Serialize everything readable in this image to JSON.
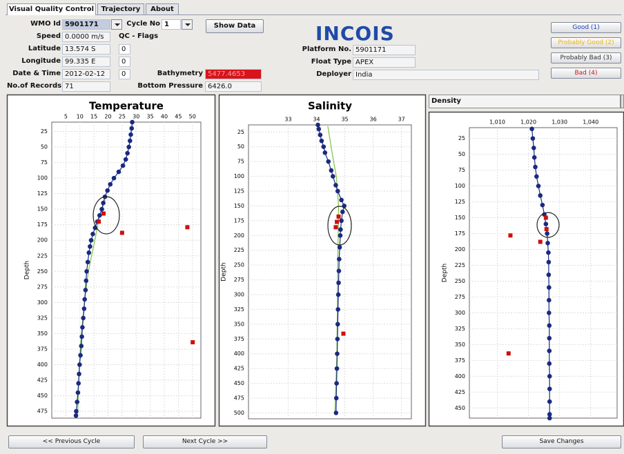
{
  "tabs": [
    "Visual Quality Control",
    "Trajectory",
    "About"
  ],
  "form": {
    "wmo_id": {
      "label": "WMO Id",
      "value": "5901171"
    },
    "cycle_no": {
      "label": "Cycle No",
      "value": "1"
    },
    "show_data": "Show Data",
    "speed": {
      "label": "Speed",
      "value": "0.0000 m/s"
    },
    "qc_flags": "QC - Flags",
    "latitude": {
      "label": "Latitude",
      "value": "13.574 S",
      "flag": "0"
    },
    "longitude": {
      "label": "Longitude",
      "value": "99.335 E",
      "flag": "0"
    },
    "date_time": {
      "label": "Date & Time",
      "value": "2012-02-12",
      "flag": "0"
    },
    "bathymetry": {
      "label": "Bathymetry",
      "value": "5477.4653"
    },
    "no_of_records": {
      "label": "No.of Records",
      "value": "71"
    },
    "bottom_pressure": {
      "label": "Bottom Pressure",
      "value": "6426.0"
    }
  },
  "platform": {
    "logo": "INCOIS",
    "platform_no": {
      "label": "Platform No.",
      "value": "5901171"
    },
    "float_type": {
      "label": "Float Type",
      "value": "APEX"
    },
    "deployer": {
      "label": "Deployer",
      "value": "India"
    }
  },
  "flag_buttons": [
    "Good (1)",
    "Probably Good (2)",
    "Probably Bad (3)",
    "Bad (4)"
  ],
  "nav": {
    "previous": "<< Previous Cycle",
    "next": "Next Cycle >>",
    "save": "Save Changes"
  },
  "chart_data": [
    {
      "type": "scatter",
      "title": "Temperature",
      "title_location": "plot",
      "y_label": "Depth",
      "xlim": [
        0,
        53
      ],
      "ylim": [
        10,
        486
      ],
      "y_inverted": true,
      "x_axis_position": "top",
      "grid": true,
      "xticks": [
        5,
        10,
        15,
        20,
        25,
        30,
        35,
        40,
        45,
        50
      ],
      "yticks": [
        25,
        50,
        75,
        100,
        125,
        150,
        175,
        200,
        225,
        250,
        275,
        300,
        325,
        350,
        375,
        400,
        425,
        450,
        475
      ],
      "series": [
        {
          "color": "#7cc142",
          "mode": "line",
          "x": [
            19.0,
            17.0,
            15.3,
            13.0,
            11.6,
            10.5,
            9.8,
            9.2
          ],
          "values": [
            135,
            160,
            200,
            250,
            300,
            350,
            400,
            480
          ]
        },
        {
          "color": "#1a2a80",
          "mode": "line+markers",
          "marker": "circle",
          "x": [
            28.6,
            28.4,
            28.1,
            27.8,
            27.4,
            26.9,
            26.3,
            25.3,
            23.8,
            22.1,
            20.8,
            19.8,
            18.9,
            18.3,
            17.8,
            17.0,
            16.2,
            15.4,
            14.6,
            14.0,
            13.6,
            13.2,
            12.8,
            12.4,
            12.2,
            12.0,
            11.7,
            11.5,
            11.2,
            10.9,
            10.7,
            10.5,
            10.2,
            9.9,
            9.7,
            9.5,
            9.3,
            9.0,
            8.7,
            8.6
          ],
          "values": [
            10,
            20,
            30,
            40,
            50,
            60,
            70,
            80,
            90,
            100,
            110,
            120,
            130,
            140,
            150,
            160,
            170,
            180,
            190,
            200,
            210,
            220,
            235,
            250,
            265,
            280,
            295,
            310,
            325,
            340,
            355,
            370,
            385,
            400,
            415,
            430,
            445,
            460,
            475,
            482
          ]
        },
        {
          "color": "#cc1010",
          "mode": "markers",
          "marker": "square",
          "x": [
            18.4,
            16.7,
            25.0,
            48.2,
            50.1
          ],
          "values": [
            157,
            170,
            188,
            179,
            364
          ]
        }
      ]
    },
    {
      "type": "scatter",
      "title": "Salinity",
      "title_location": "plot",
      "y_label": "Depth",
      "xlim": [
        31.6,
        37.35
      ],
      "ylim": [
        13,
        510
      ],
      "y_inverted": true,
      "x_axis_position": "top",
      "grid": true,
      "xticks": [
        33,
        34,
        35,
        36,
        37
      ],
      "yticks": [
        25,
        50,
        75,
        100,
        125,
        150,
        175,
        200,
        225,
        250,
        275,
        300,
        325,
        350,
        375,
        400,
        425,
        450,
        475,
        500
      ],
      "series": [
        {
          "color": "#7cc142",
          "mode": "line",
          "x": [
            34.4,
            34.55,
            34.7,
            34.78,
            34.75,
            34.72,
            34.65
          ],
          "values": [
            15,
            60,
            100,
            150,
            250,
            400,
            500
          ]
        },
        {
          "color": "#1a2a80",
          "mode": "line+markers",
          "marker": "circle",
          "x": [
            34.05,
            34.08,
            34.13,
            34.18,
            34.25,
            34.3,
            34.42,
            34.52,
            34.58,
            34.68,
            34.75,
            34.88,
            34.98,
            34.92,
            34.88,
            34.85,
            34.84,
            34.82,
            34.8,
            34.79,
            34.78,
            34.77,
            34.76,
            34.75,
            34.74,
            34.73,
            34.72,
            34.71,
            34.7,
            34.69
          ],
          "values": [
            13,
            20,
            30,
            40,
            50,
            60,
            75,
            90,
            100,
            115,
            125,
            140,
            150,
            160,
            175,
            190,
            200,
            220,
            240,
            260,
            280,
            300,
            325,
            350,
            375,
            400,
            425,
            450,
            475,
            500
          ]
        },
        {
          "color": "#cc1010",
          "mode": "markers",
          "marker": "square",
          "x": [
            34.78,
            34.72,
            34.68,
            34.95
          ],
          "values": [
            168,
            177,
            186,
            366
          ]
        }
      ]
    },
    {
      "type": "scatter",
      "title": "Density",
      "title_location": "header",
      "y_label": "Depth",
      "xlim": [
        1.001,
        1.0485
      ],
      "ylim": [
        8,
        466
      ],
      "y_inverted": true,
      "x_axis_position": "top",
      "grid": true,
      "xticks": [
        {
          "value": 1.01,
          "label": "1,010"
        },
        {
          "value": 1.02,
          "label": "1,020"
        },
        {
          "value": 1.03,
          "label": "1,030"
        },
        {
          "value": 1.04,
          "label": "1,040"
        }
      ],
      "yticks": [
        25,
        50,
        75,
        100,
        125,
        150,
        175,
        200,
        225,
        250,
        275,
        300,
        325,
        350,
        375,
        400,
        425,
        450
      ],
      "series": [
        {
          "color": "#1a2a80",
          "mode": "line+markers",
          "marker": "circle",
          "x": [
            1.0211,
            1.0214,
            1.0217,
            1.0219,
            1.0222,
            1.0226,
            1.0232,
            1.0238,
            1.0245,
            1.0251,
            1.0256,
            1.026,
            1.0262,
            1.0264,
            1.0265,
            1.0265,
            1.0266,
            1.0266,
            1.0266,
            1.0267,
            1.0267,
            1.0267,
            1.0267,
            1.0268,
            1.0268,
            1.0268,
            1.0268,
            1.0268
          ],
          "values": [
            10,
            25,
            40,
            55,
            70,
            85,
            100,
            115,
            130,
            145,
            160,
            175,
            190,
            205,
            220,
            240,
            260,
            280,
            300,
            320,
            340,
            360,
            380,
            400,
            420,
            440,
            460,
            466
          ]
        },
        {
          "color": "#cc1010",
          "mode": "markers",
          "marker": "square",
          "x": [
            1.0256,
            1.0258,
            1.0238,
            1.0142,
            1.0136
          ],
          "values": [
            150,
            168,
            188,
            178,
            364
          ]
        }
      ]
    }
  ]
}
